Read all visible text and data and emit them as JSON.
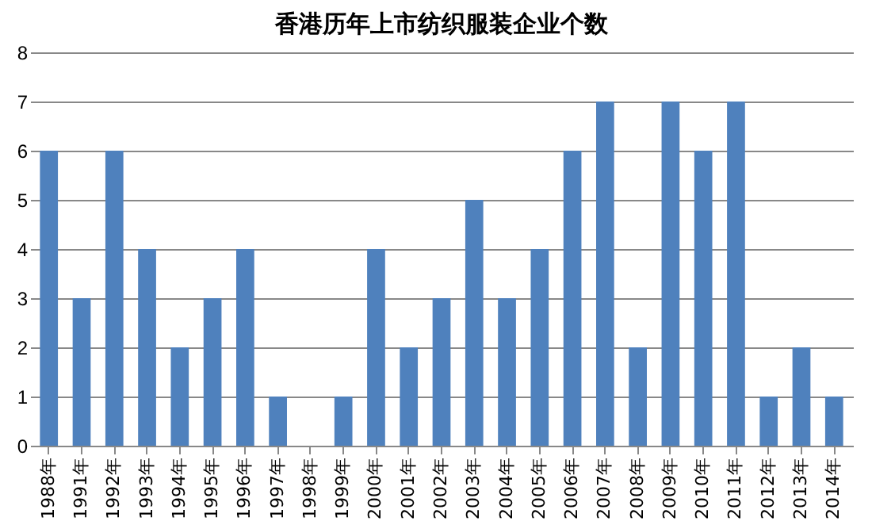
{
  "chart_data": {
    "type": "bar",
    "title": "香港历年上市纺织服装企业个数",
    "categories": [
      "1988年",
      "1991年",
      "1992年",
      "1993年",
      "1994年",
      "1995年",
      "1996年",
      "1997年",
      "1998年",
      "1999年",
      "2000年",
      "2001年",
      "2002年",
      "2003年",
      "2004年",
      "2005年",
      "2006年",
      "2007年",
      "2008年",
      "2009年",
      "2010年",
      "2011年",
      "2012年",
      "2013年",
      "2014年"
    ],
    "values": [
      6,
      3,
      6,
      4,
      2,
      3,
      4,
      1,
      0,
      1,
      4,
      2,
      3,
      5,
      3,
      4,
      6,
      7,
      2,
      7,
      6,
      7,
      1,
      2,
      1
    ],
    "color": "#4f81bd",
    "ylim": [
      0,
      8
    ],
    "yticks": [
      0,
      1,
      2,
      3,
      4,
      5,
      6,
      7,
      8
    ],
    "grid": "y"
  }
}
